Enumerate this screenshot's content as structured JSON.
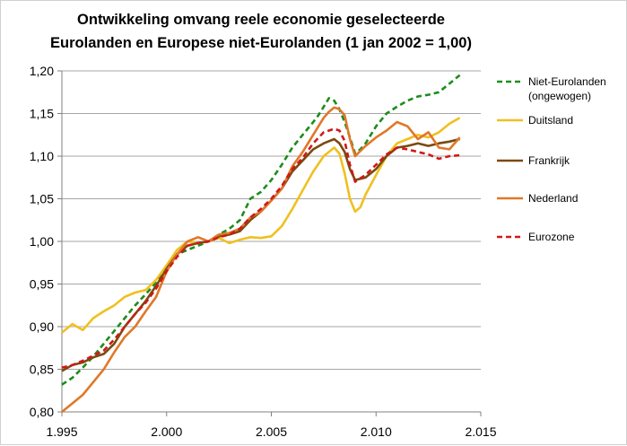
{
  "chart_data": {
    "type": "line",
    "title_line1": "Ontwikkeling omvang reele economie geselecteerde",
    "title_line2": "Eurolanden en Europese niet-Eurolanden (1 jan 2002 = 1,00)",
    "xlabel": "",
    "ylabel": "",
    "xlim": [
      1995,
      2015
    ],
    "ylim": [
      0.8,
      1.2
    ],
    "x_ticks": [
      "1.995",
      "2.000",
      "2.005",
      "2.010",
      "2.015"
    ],
    "y_ticks": [
      "0,80",
      "0,85",
      "0,90",
      "0,95",
      "1,00",
      "1,05",
      "1,10",
      "1,15",
      "1,20"
    ],
    "grid": "horizontal",
    "legend_position": "right",
    "series": [
      {
        "name": "Niet-Eurolanden",
        "name_line2": "(ongewogen)",
        "color": "#1e8c1e",
        "dash": "dashed",
        "x": [
          1995,
          1995.5,
          1996,
          1996.5,
          1997,
          1997.5,
          1998,
          1998.5,
          1999,
          1999.5,
          2000,
          2000.5,
          2001,
          2001.5,
          2002,
          2002.5,
          2003,
          2003.5,
          2004,
          2004.5,
          2005,
          2005.5,
          2006,
          2006.5,
          2007,
          2007.25,
          2007.5,
          2007.75,
          2008,
          2008.25,
          2008.5,
          2008.75,
          2009,
          2009.25,
          2009.5,
          2010,
          2010.5,
          2011,
          2011.5,
          2012,
          2012.5,
          2013,
          2013.5,
          2014
        ],
        "values": [
          0.832,
          0.84,
          0.852,
          0.865,
          0.88,
          0.895,
          0.91,
          0.925,
          0.938,
          0.952,
          0.97,
          0.985,
          0.99,
          0.995,
          1.0,
          1.008,
          1.015,
          1.025,
          1.05,
          1.058,
          1.072,
          1.09,
          1.11,
          1.125,
          1.14,
          1.148,
          1.158,
          1.168,
          1.165,
          1.155,
          1.14,
          1.122,
          1.103,
          1.108,
          1.115,
          1.135,
          1.15,
          1.158,
          1.165,
          1.17,
          1.172,
          1.175,
          1.185,
          1.195
        ]
      },
      {
        "name": "Duitsland",
        "color": "#f0c020",
        "dash": "solid",
        "x": [
          1995,
          1995.5,
          1996,
          1996.5,
          1997,
          1997.5,
          1998,
          1998.5,
          1999,
          1999.5,
          2000,
          2000.5,
          2001,
          2001.5,
          2002,
          2002.5,
          2003,
          2003.5,
          2004,
          2004.5,
          2005,
          2005.5,
          2006,
          2006.5,
          2007,
          2007.5,
          2008,
          2008.25,
          2008.5,
          2008.75,
          2009,
          2009.25,
          2009.5,
          2010,
          2010.5,
          2011,
          2011.5,
          2012,
          2012.5,
          2013,
          2013.5,
          2014
        ],
        "values": [
          0.893,
          0.903,
          0.896,
          0.91,
          0.918,
          0.925,
          0.935,
          0.94,
          0.943,
          0.955,
          0.972,
          0.99,
          1.0,
          0.998,
          1.0,
          1.004,
          0.998,
          1.002,
          1.005,
          1.004,
          1.006,
          1.018,
          1.038,
          1.06,
          1.082,
          1.1,
          1.11,
          1.103,
          1.08,
          1.05,
          1.035,
          1.04,
          1.055,
          1.078,
          1.1,
          1.115,
          1.12,
          1.125,
          1.122,
          1.128,
          1.138,
          1.145
        ]
      },
      {
        "name": "Frankrijk",
        "color": "#7a4a10",
        "dash": "solid",
        "x": [
          1995,
          1995.5,
          1996,
          1996.5,
          1997,
          1997.5,
          1998,
          1998.5,
          1999,
          1999.5,
          2000,
          2000.5,
          2001,
          2001.5,
          2002,
          2002.5,
          2003,
          2003.5,
          2004,
          2004.5,
          2005,
          2005.5,
          2006,
          2006.5,
          2007,
          2007.5,
          2008,
          2008.25,
          2008.5,
          2008.75,
          2009,
          2009.5,
          2010,
          2010.5,
          2011,
          2011.5,
          2012,
          2012.5,
          2013,
          2013.5,
          2014
        ],
        "values": [
          0.848,
          0.855,
          0.858,
          0.864,
          0.868,
          0.88,
          0.9,
          0.915,
          0.93,
          0.948,
          0.968,
          0.985,
          0.995,
          0.998,
          1.0,
          1.006,
          1.008,
          1.012,
          1.025,
          1.035,
          1.048,
          1.062,
          1.082,
          1.095,
          1.108,
          1.115,
          1.12,
          1.115,
          1.105,
          1.085,
          1.072,
          1.075,
          1.085,
          1.1,
          1.11,
          1.112,
          1.115,
          1.112,
          1.115,
          1.117,
          1.12
        ]
      },
      {
        "name": "Nederland",
        "color": "#e07828",
        "dash": "solid",
        "x": [
          1995,
          1995.5,
          1996,
          1996.5,
          1997,
          1997.5,
          1998,
          1998.5,
          1999,
          1999.5,
          2000,
          2000.5,
          2001,
          2001.5,
          2002,
          2002.5,
          2003,
          2003.5,
          2004,
          2004.5,
          2005,
          2005.5,
          2006,
          2006.5,
          2007,
          2007.5,
          2007.75,
          2008,
          2008.25,
          2008.5,
          2008.75,
          2009,
          2009.5,
          2010,
          2010.5,
          2011,
          2011.5,
          2012,
          2012.5,
          2013,
          2013.5,
          2014
        ],
        "values": [
          0.8,
          0.81,
          0.82,
          0.835,
          0.85,
          0.87,
          0.888,
          0.9,
          0.918,
          0.935,
          0.965,
          0.985,
          1.0,
          1.005,
          1.0,
          1.008,
          1.01,
          1.015,
          1.028,
          1.035,
          1.048,
          1.062,
          1.088,
          1.105,
          1.125,
          1.145,
          1.152,
          1.157,
          1.155,
          1.148,
          1.12,
          1.1,
          1.112,
          1.122,
          1.13,
          1.14,
          1.135,
          1.12,
          1.128,
          1.11,
          1.108,
          1.122
        ]
      },
      {
        "name": "Eurozone",
        "color": "#d01818",
        "dash": "dashed",
        "x": [
          1995,
          1995.5,
          1996,
          1996.5,
          1997,
          1997.5,
          1998,
          1998.5,
          1999,
          1999.5,
          2000,
          2000.5,
          2001,
          2001.5,
          2002,
          2002.5,
          2003,
          2003.5,
          2004,
          2004.5,
          2005,
          2005.5,
          2006,
          2006.5,
          2007,
          2007.5,
          2008,
          2008.25,
          2008.5,
          2008.75,
          2009,
          2009.5,
          2010,
          2010.5,
          2011,
          2011.5,
          2012,
          2012.5,
          2013,
          2013.5,
          2014
        ],
        "values": [
          0.852,
          0.855,
          0.86,
          0.866,
          0.872,
          0.885,
          0.9,
          0.915,
          0.928,
          0.945,
          0.965,
          0.982,
          0.995,
          0.998,
          1.0,
          1.005,
          1.008,
          1.015,
          1.028,
          1.038,
          1.05,
          1.065,
          1.085,
          1.098,
          1.115,
          1.128,
          1.132,
          1.13,
          1.118,
          1.09,
          1.07,
          1.078,
          1.09,
          1.102,
          1.11,
          1.108,
          1.105,
          1.102,
          1.097,
          1.1,
          1.101
        ]
      }
    ]
  }
}
